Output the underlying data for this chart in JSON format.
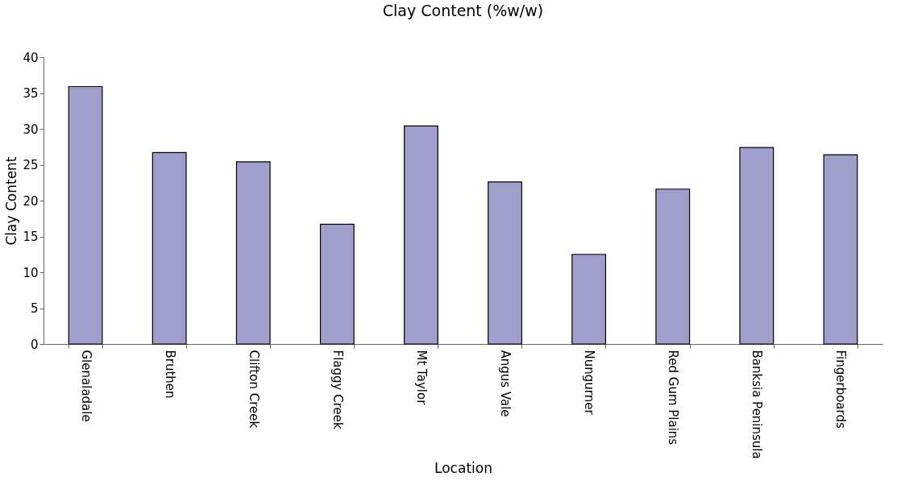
{
  "chart_data": {
    "type": "bar",
    "title": "Clay Content (%w/w)",
    "xlabel": "Location",
    "ylabel": "Clay Content",
    "categories": [
      "Glenaladale",
      "Bruthen",
      "Clifton Creek",
      "Flaggy Creek",
      "Mt Taylor",
      "Angus Vale",
      "Nungurner",
      "Red Gum Plains",
      "Banksia Peninsula",
      "Fingerboards"
    ],
    "values": [
      35.9,
      26.7,
      25.4,
      16.7,
      30.4,
      22.6,
      12.5,
      21.6,
      27.4,
      26.4
    ],
    "color": "#a09ecb",
    "ylim": [
      0,
      40
    ],
    "yticks": [
      0,
      5,
      10,
      15,
      20,
      25,
      30,
      35,
      40
    ],
    "grid": false
  }
}
